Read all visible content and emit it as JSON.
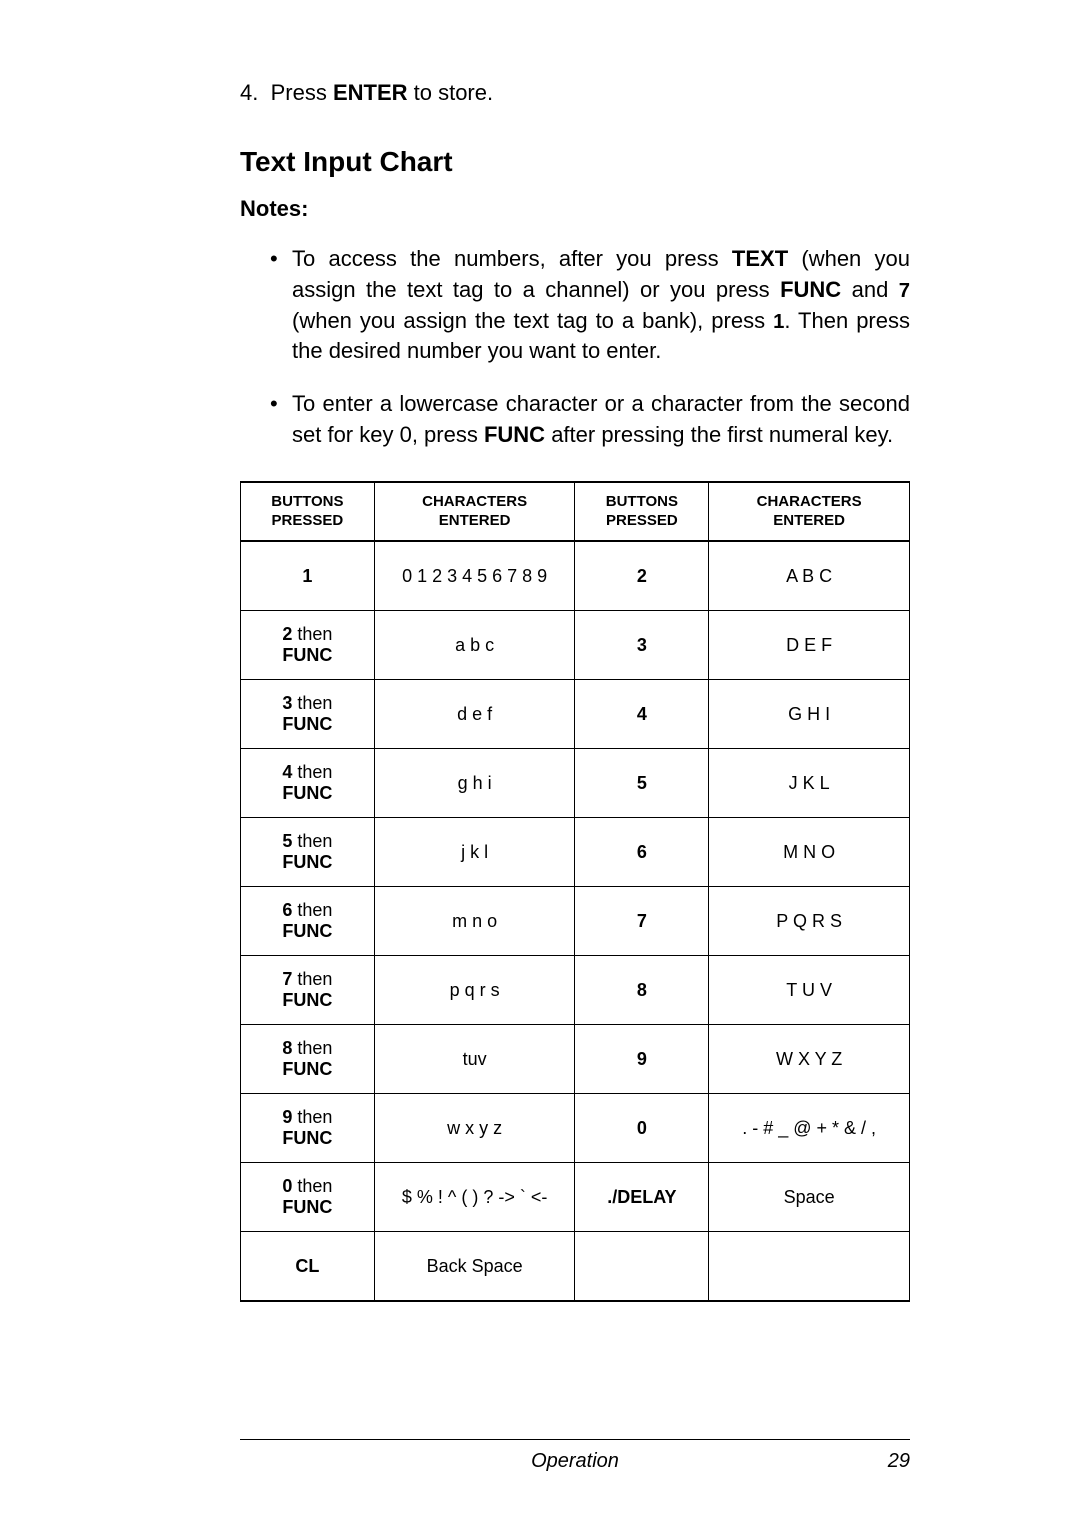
{
  "step": {
    "num": "4.",
    "prefix": "Press ",
    "key": "ENTER",
    "suffix": " to store."
  },
  "section_title": "Text Input Chart",
  "notes_label": "Notes:",
  "note1": {
    "p1": "To access the numbers, after you press ",
    "k1": "TEXT",
    "p2": " (when you assign the text tag to a channel) or you press ",
    "k2": "FUNC",
    "p3": " and ",
    "k3": "7",
    "p4": " (when you assign the text tag to a bank), press ",
    "k4": "1",
    "p5": ". Then press the desired number you want to enter."
  },
  "note2": {
    "p1": "To enter a lowercase character or a character from the second set for key 0, press ",
    "k1": "FUNC",
    "p2": " after pressing the first numeral key."
  },
  "headers": {
    "h1a": "BUTTONS",
    "h1b": "PRESSED",
    "h2a": "CHARACTERS",
    "h2b": "ENTERED",
    "h3a": "BUTTONS",
    "h3b": "PRESSED",
    "h4a": "CHARACTERS",
    "h4b": "ENTERED"
  },
  "then_word": " then",
  "func_word": "FUNC",
  "rows": [
    {
      "b1": "1",
      "b1_func": false,
      "c1": "0 1 2 3 4 5 6 7 8 9",
      "b2": "2",
      "c2": "A B C"
    },
    {
      "b1": "2",
      "b1_func": true,
      "c1": "a b c",
      "b2": "3",
      "c2": "D E F"
    },
    {
      "b1": "3",
      "b1_func": true,
      "c1": "d e f",
      "b2": "4",
      "c2": "G H I"
    },
    {
      "b1": "4",
      "b1_func": true,
      "c1": "g h i",
      "b2": "5",
      "c2": "J K L"
    },
    {
      "b1": "5",
      "b1_func": true,
      "c1": "j k l",
      "b2": "6",
      "c2": "M N O"
    },
    {
      "b1": "6",
      "b1_func": true,
      "c1": "m n o",
      "b2": "7",
      "c2": "P Q R S"
    },
    {
      "b1": "7",
      "b1_func": true,
      "c1": "p q r s",
      "b2": "8",
      "c2": "T U V"
    },
    {
      "b1": "8",
      "b1_func": true,
      "c1": "tuv",
      "b2": "9",
      "c2": "W X Y Z"
    },
    {
      "b1": "9",
      "b1_func": true,
      "c1": "w x y z",
      "b2": "0",
      "c2": ". - # _ @ + * & / ,"
    },
    {
      "b1": "0",
      "b1_func": true,
      "c1": "$ % ! ^ ( ) ? -> ` <-",
      "b2": "./DELAY",
      "c2": "Space"
    },
    {
      "b1": "CL",
      "b1_func": false,
      "c1": "Back Space",
      "b2": "",
      "c2": ""
    }
  ],
  "footer": {
    "section": "Operation",
    "page": "29"
  }
}
